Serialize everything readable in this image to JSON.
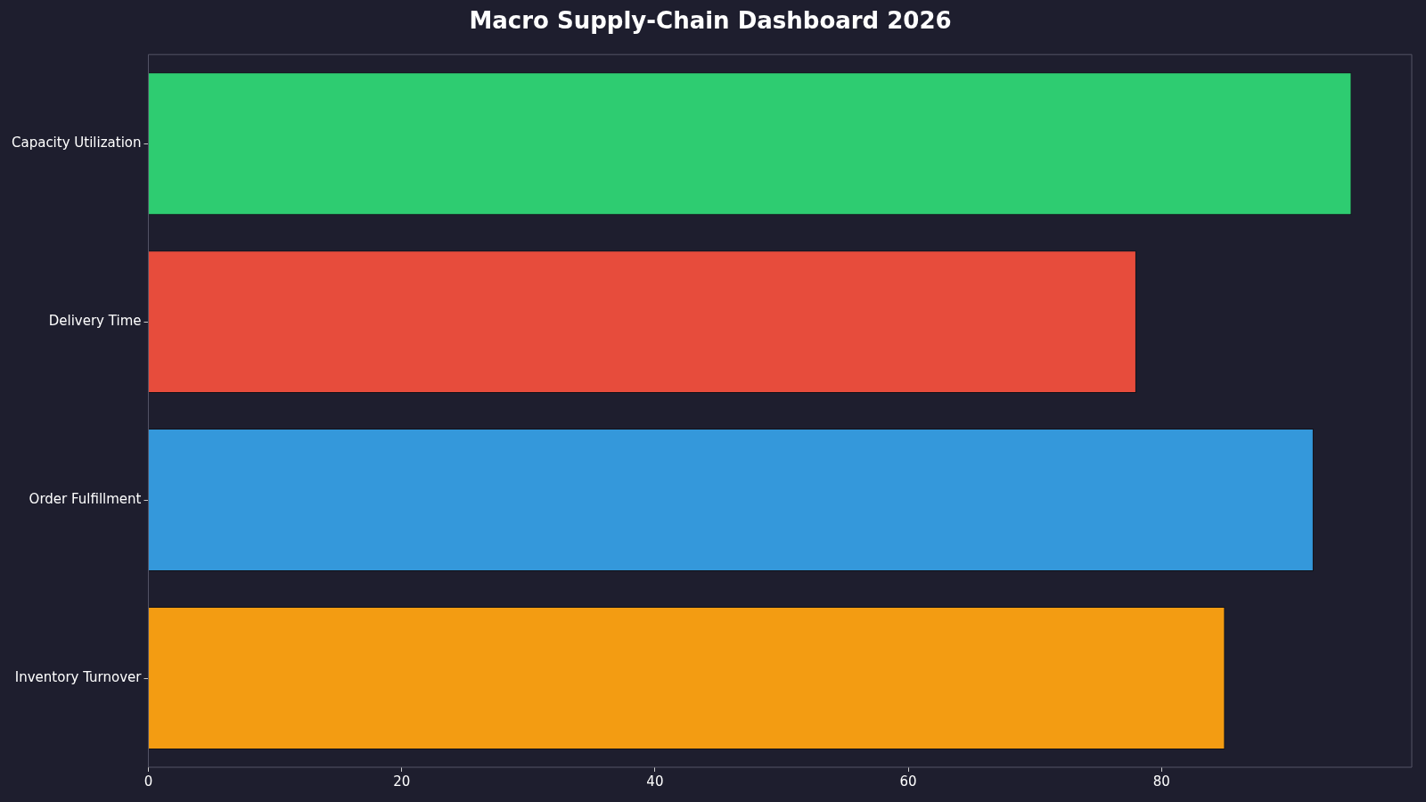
{
  "chart_data": {
    "type": "bar",
    "orientation": "horizontal",
    "title": "Macro Supply-Chain Dashboard 2026",
    "categories": [
      "Capacity Utilization",
      "Delivery Time",
      "Order Fulfillment",
      "Inventory Turnover"
    ],
    "values": [
      95,
      78,
      92,
      85
    ],
    "colors": [
      "#2ecc71",
      "#e74c3c",
      "#3498db",
      "#f39c12"
    ],
    "xlim": [
      0,
      99.75
    ],
    "xticks": [
      0,
      20,
      40,
      60,
      80
    ],
    "grid": false,
    "legend": false
  }
}
